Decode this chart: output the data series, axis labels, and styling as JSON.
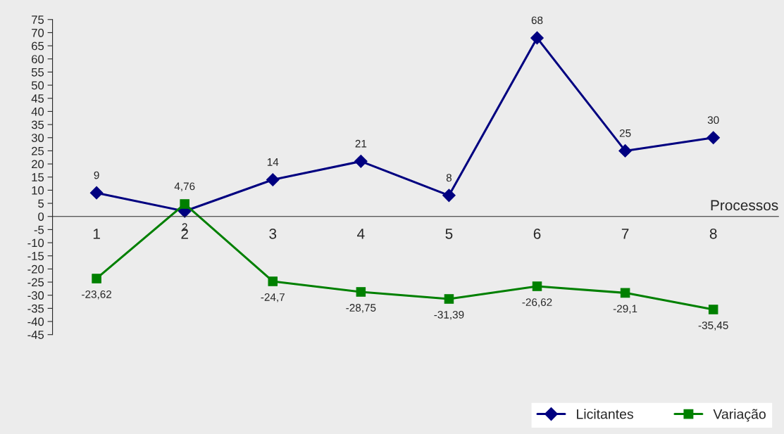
{
  "chart_data": {
    "type": "line",
    "xlabel": "Processos",
    "categories": [
      "1",
      "2",
      "3",
      "4",
      "5",
      "6",
      "7",
      "8"
    ],
    "series": [
      {
        "name": "Licitantes",
        "color": "#000080",
        "marker": "diamond",
        "values": [
          9,
          2,
          14,
          21,
          8,
          68,
          25,
          30
        ],
        "value_labels": [
          "9",
          "2",
          "14",
          "21",
          "8",
          "68",
          "25",
          "30"
        ]
      },
      {
        "name": "Variação",
        "color": "#008000",
        "marker": "square",
        "values": [
          -23.62,
          4.76,
          -24.7,
          -28.75,
          -31.39,
          -26.62,
          -29.1,
          -35.45
        ],
        "value_labels": [
          "-23,62",
          "4,76",
          "-24,7",
          "-28,75",
          "-31,39",
          "-26,62",
          "-29,1",
          "-35,45"
        ]
      }
    ],
    "ylim": [
      -45,
      75
    ],
    "yticks": [
      -45,
      -40,
      -35,
      -30,
      -25,
      -20,
      -15,
      -10,
      -5,
      0,
      5,
      10,
      15,
      20,
      25,
      30,
      35,
      40,
      45,
      50,
      55,
      60,
      65,
      70,
      75
    ],
    "grid": false,
    "legend": "bottom right",
    "line_style": "solid"
  }
}
